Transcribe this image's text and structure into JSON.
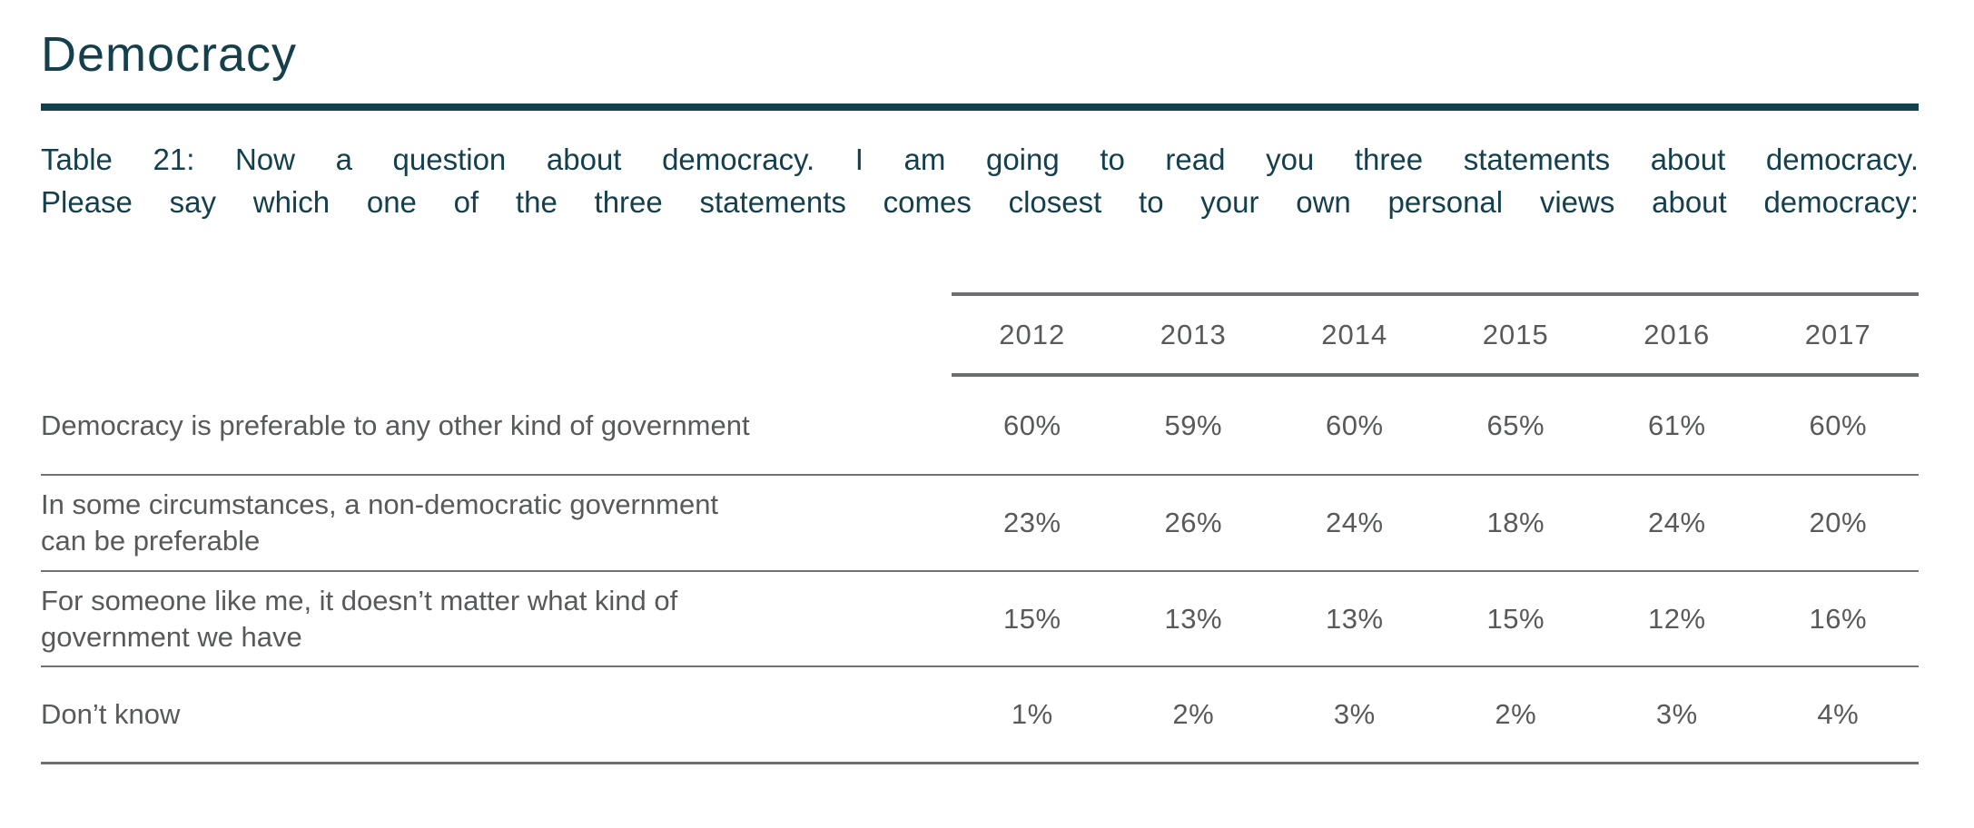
{
  "page": {
    "title": "Democracy",
    "accent_color": "#14404e",
    "text_color": "#58595b",
    "line_color": "#6d6e71",
    "background_color": "#ffffff"
  },
  "caption": {
    "lines": [
      "Table 21: Now a question about democracy. I am going to read you three statements about democracy.",
      "Please say which one of the three statements comes closest to your own personal views about democracy:"
    ]
  },
  "table": {
    "columns": [
      "2012",
      "2013",
      "2014",
      "2015",
      "2016",
      "2017"
    ],
    "rows": [
      {
        "label_lines": [
          "Democracy is preferable to any other kind of government"
        ],
        "values": [
          "60%",
          "59%",
          "60%",
          "65%",
          "61%",
          "60%"
        ]
      },
      {
        "label_lines": [
          "In some circumstances, a non-democratic government",
          "can be preferable"
        ],
        "values": [
          "23%",
          "26%",
          "24%",
          "18%",
          "24%",
          "20%"
        ]
      },
      {
        "label_lines": [
          "For someone like me, it doesn’t matter what kind of",
          "government we have"
        ],
        "values": [
          "15%",
          "13%",
          "13%",
          "15%",
          "12%",
          "16%"
        ]
      },
      {
        "label_lines": [
          "Don’t know"
        ],
        "values": [
          "1%",
          "2%",
          "3%",
          "2%",
          "3%",
          "4%"
        ]
      }
    ]
  },
  "chart_data": {
    "type": "table",
    "title": "Table 21: Now a question about democracy. I am going to read you three statements about democracy. Please say which one of the three statements comes closest to your own personal views about democracy:",
    "categories": [
      "2012",
      "2013",
      "2014",
      "2015",
      "2016",
      "2017"
    ],
    "series": [
      {
        "name": "Democracy is preferable to any other kind of government",
        "values": [
          60,
          59,
          60,
          65,
          61,
          60
        ]
      },
      {
        "name": "In some circumstances, a non-democratic government can be preferable",
        "values": [
          23,
          26,
          24,
          18,
          24,
          20
        ]
      },
      {
        "name": "For someone like me, it doesn’t matter what kind of government we have",
        "values": [
          15,
          13,
          13,
          15,
          12,
          16
        ]
      },
      {
        "name": "Don’t know",
        "values": [
          1,
          2,
          3,
          2,
          3,
          4
        ]
      }
    ],
    "unit": "%"
  }
}
